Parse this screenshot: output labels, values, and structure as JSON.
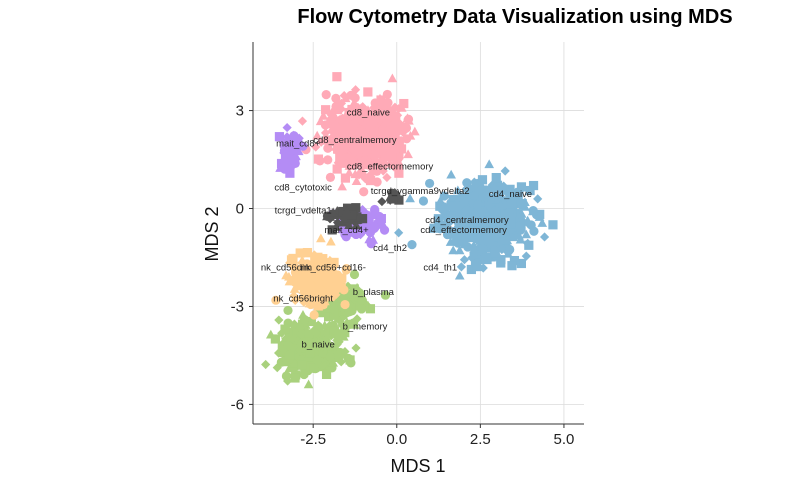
{
  "chart_data": {
    "type": "scatter",
    "title": "Flow Cytometry Data Visualization using MDS",
    "xlabel": "MDS 1",
    "ylabel": "MDS 2",
    "xlim": [
      -4.3,
      5.6
    ],
    "ylim": [
      -6.6,
      5.1
    ],
    "x_ticks": [
      {
        "value": -2.5,
        "label": "-2.5"
      },
      {
        "value": 0,
        "label": "0.0"
      },
      {
        "value": 2.5,
        "label": "2.5"
      },
      {
        "value": 5,
        "label": "5.0"
      }
    ],
    "y_ticks": [
      {
        "value": -6,
        "label": "-6"
      },
      {
        "value": -3,
        "label": "-3"
      },
      {
        "value": 0,
        "label": "0"
      },
      {
        "value": 3,
        "label": "3"
      }
    ],
    "grid": true,
    "legend": "none",
    "colors": {
      "cd8": "#ffaab7",
      "cd4": "#7fb6d6",
      "nk": "#ffd092",
      "b": "#a9d17d",
      "mait": "#b48cf5",
      "tcrgd": "#555555"
    },
    "clusters": [
      {
        "group": "cd4",
        "cx": 2.6,
        "cy": -0.3,
        "sx": 1.15,
        "sy": 0.95,
        "n": 650
      },
      {
        "group": "cd8",
        "cx": -0.9,
        "cy": 2.2,
        "sx": 1.05,
        "sy": 0.95,
        "n": 550
      },
      {
        "group": "b",
        "cx": -2.6,
        "cy": -4.3,
        "sx": 0.8,
        "sy": 0.75,
        "n": 360
      },
      {
        "group": "b",
        "cx": -1.6,
        "cy": -2.9,
        "sx": 0.6,
        "sy": 0.55,
        "n": 120
      },
      {
        "group": "nk",
        "cx": -2.4,
        "cy": -2.2,
        "sx": 0.65,
        "sy": 0.65,
        "n": 280
      },
      {
        "group": "mait",
        "cx": -1.1,
        "cy": -0.4,
        "sx": 0.55,
        "sy": 0.4,
        "n": 120
      },
      {
        "group": "mait",
        "cx": -3.2,
        "cy": 1.7,
        "sx": 0.3,
        "sy": 0.55,
        "n": 45
      },
      {
        "group": "tcrgd",
        "cx": -1.5,
        "cy": -0.3,
        "sx": 0.45,
        "sy": 0.35,
        "n": 35
      },
      {
        "group": "tcrgd",
        "cx": -0.2,
        "cy": 0.4,
        "sx": 0.25,
        "sy": 0.2,
        "n": 12
      }
    ],
    "annotations": [
      {
        "text": "cd8_naive",
        "x": -0.85,
        "y": 2.85
      },
      {
        "text": "cd8_centralmemory",
        "x": -1.25,
        "y": 2.0
      },
      {
        "text": "mait_cd8+",
        "x": -2.95,
        "y": 1.9
      },
      {
        "text": "cd8_effectormemory",
        "x": -0.2,
        "y": 1.2
      },
      {
        "text": "cd8_cytotoxic",
        "x": -2.8,
        "y": 0.55
      },
      {
        "text": "tcrgd_vgamma9vdelta2",
        "x": 0.7,
        "y": 0.45
      },
      {
        "text": "cd4_naive",
        "x": 3.4,
        "y": 0.35
      },
      {
        "text": "tcrgd_vdelta1",
        "x": -2.8,
        "y": -0.15
      },
      {
        "text": "cd4_centralmemory",
        "x": 2.1,
        "y": -0.45
      },
      {
        "text": "cd4_effectormemory",
        "x": 2.0,
        "y": -0.75
      },
      {
        "text": "mait_cd4+",
        "x": -1.5,
        "y": -0.75
      },
      {
        "text": "cd4_th2",
        "x": -0.2,
        "y": -1.3
      },
      {
        "text": "cd4_th1",
        "x": 1.3,
        "y": -1.9
      },
      {
        "text": "nk_cd56dim",
        "x": -3.3,
        "y": -1.9
      },
      {
        "text": "nk_cd56+cd16-",
        "x": -1.9,
        "y": -1.9
      },
      {
        "text": "b_plasma",
        "x": -0.7,
        "y": -2.65
      },
      {
        "text": "nk_cd56bright",
        "x": -2.8,
        "y": -2.85
      },
      {
        "text": "b_memory",
        "x": -0.95,
        "y": -3.7
      },
      {
        "text": "b_naive",
        "x": -2.35,
        "y": -4.25
      }
    ]
  }
}
